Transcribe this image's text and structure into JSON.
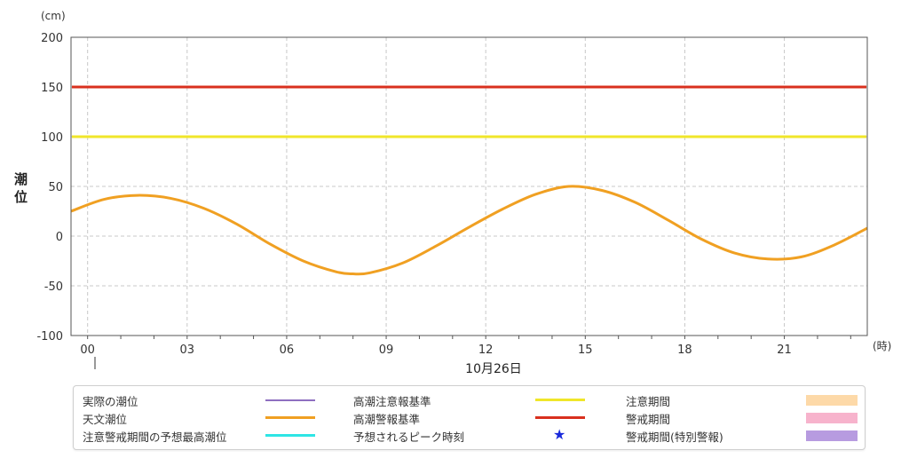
{
  "chart_data": {
    "type": "line",
    "y_unit": "(cm)",
    "x_unit": "(時)",
    "ylabel": "潮位",
    "date_label": "10月26日",
    "ylim": [
      -100,
      200
    ],
    "xlim": [
      -0.5,
      23.5
    ],
    "y_ticks": [
      "200",
      "150",
      "100",
      "50",
      "0",
      "-50",
      "-100"
    ],
    "y_tick_values": [
      200,
      150,
      100,
      50,
      0,
      -50,
      -100
    ],
    "x_ticks": [
      "00",
      "03",
      "06",
      "09",
      "12",
      "15",
      "18",
      "21"
    ],
    "x_tick_values": [
      0,
      3,
      6,
      9,
      12,
      15,
      18,
      21
    ],
    "grid": true,
    "thresholds": [
      {
        "name": "高潮警報基準",
        "value": 150,
        "color": "#d9301e"
      },
      {
        "name": "高潮注意報基準",
        "value": 100,
        "color": "#f0e62a"
      }
    ],
    "series": [
      {
        "name": "天文潮位",
        "color": "#f0a022",
        "x": [
          -0.5,
          0.5,
          1.5,
          2.5,
          3.5,
          4.5,
          5.5,
          6.5,
          7.5,
          8.0,
          8.5,
          9.5,
          10.5,
          11.5,
          12.5,
          13.5,
          14.5,
          15.5,
          16.5,
          17.5,
          18.5,
          19.5,
          20.5,
          21.5,
          22.5,
          23.5
        ],
        "values": [
          25,
          37,
          41,
          38,
          28,
          12,
          -8,
          -25,
          -36,
          -38,
          -37,
          -27,
          -10,
          9,
          27,
          42,
          50,
          46,
          34,
          16,
          -3,
          -17,
          -23,
          -21,
          -9,
          8
        ]
      }
    ]
  },
  "legend": {
    "items": [
      {
        "label": "実際の潮位",
        "kind": "line",
        "color": "#8e6fc0"
      },
      {
        "label": "天文潮位",
        "kind": "line",
        "color": "#f0a022"
      },
      {
        "label": "注意警戒期間の予想最高潮位",
        "kind": "line",
        "color": "#2ee5e5"
      },
      {
        "label": "高潮注意報基準",
        "kind": "line",
        "color": "#f0e62a"
      },
      {
        "label": "高潮警報基準",
        "kind": "line",
        "color": "#d9301e"
      },
      {
        "label": "予想されるピーク時刻",
        "kind": "star",
        "color": "#1a2adb",
        "symbol": "★"
      },
      {
        "label": "注意期間",
        "kind": "box",
        "color": "#fdd9a8"
      },
      {
        "label": "警戒期間",
        "kind": "box",
        "color": "#f7b3cc"
      },
      {
        "label": "警戒期間(特別警報)",
        "kind": "box",
        "color": "#b79be0"
      }
    ]
  }
}
